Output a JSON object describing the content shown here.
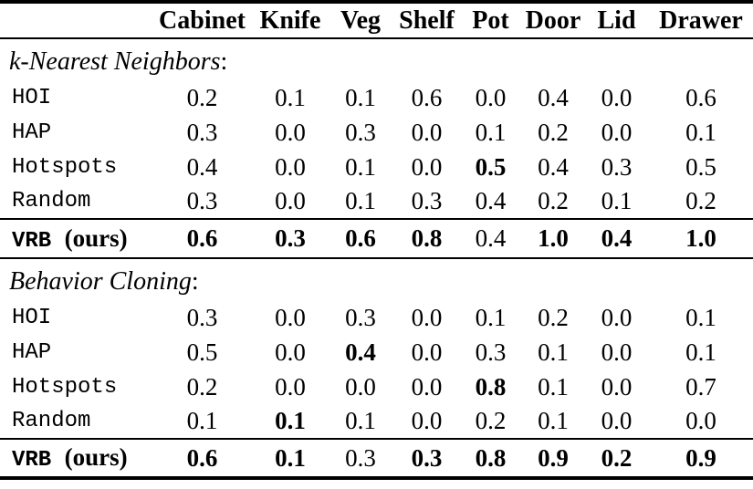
{
  "page": {
    "background": "#ffffff",
    "text_color": "#000000"
  },
  "table": {
    "columns": [
      "Cabinet",
      "Knife",
      "Veg",
      "Shelf",
      "Pot",
      "Door",
      "Lid",
      "Drawer"
    ],
    "sections": [
      {
        "id": "knn",
        "label": "k-Nearest Neighbors",
        "colon": ":",
        "rows": [
          {
            "method": "HOI",
            "values": [
              "0.2",
              "0.1",
              "0.1",
              "0.6",
              "0.0",
              "0.4",
              "0.0",
              "0.6"
            ],
            "bold": [
              false,
              false,
              false,
              false,
              false,
              false,
              false,
              false
            ]
          },
          {
            "method": "HAP",
            "values": [
              "0.3",
              "0.0",
              "0.3",
              "0.0",
              "0.1",
              "0.2",
              "0.0",
              "0.1"
            ],
            "bold": [
              false,
              false,
              false,
              false,
              false,
              false,
              false,
              false
            ]
          },
          {
            "method": "Hotspots",
            "values": [
              "0.4",
              "0.0",
              "0.1",
              "0.0",
              "0.5",
              "0.4",
              "0.3",
              "0.5"
            ],
            "bold": [
              false,
              false,
              false,
              false,
              true,
              false,
              false,
              false
            ]
          },
          {
            "method": "Random",
            "values": [
              "0.3",
              "0.0",
              "0.1",
              "0.3",
              "0.4",
              "0.2",
              "0.1",
              "0.2"
            ],
            "bold": [
              false,
              false,
              false,
              false,
              false,
              false,
              false,
              false
            ]
          }
        ],
        "summary": {
          "method": "VRB",
          "note": "(ours)",
          "values": [
            "0.6",
            "0.3",
            "0.6",
            "0.8",
            "0.4",
            "1.0",
            "0.4",
            "1.0"
          ],
          "bold": [
            true,
            true,
            true,
            true,
            false,
            true,
            true,
            true
          ]
        }
      },
      {
        "id": "bc",
        "label": "Behavior Cloning",
        "colon": ":",
        "rows": [
          {
            "method": "HOI",
            "values": [
              "0.3",
              "0.0",
              "0.3",
              "0.0",
              "0.1",
              "0.2",
              "0.0",
              "0.1"
            ],
            "bold": [
              false,
              false,
              false,
              false,
              false,
              false,
              false,
              false
            ]
          },
          {
            "method": "HAP",
            "values": [
              "0.5",
              "0.0",
              "0.4",
              "0.0",
              "0.3",
              "0.1",
              "0.0",
              "0.1"
            ],
            "bold": [
              false,
              false,
              true,
              false,
              false,
              false,
              false,
              false
            ]
          },
          {
            "method": "Hotspots",
            "values": [
              "0.2",
              "0.0",
              "0.0",
              "0.0",
              "0.8",
              "0.1",
              "0.0",
              "0.7"
            ],
            "bold": [
              false,
              false,
              false,
              false,
              true,
              false,
              false,
              false
            ]
          },
          {
            "method": "Random",
            "values": [
              "0.1",
              "0.1",
              "0.1",
              "0.0",
              "0.2",
              "0.1",
              "0.0",
              "0.0"
            ],
            "bold": [
              false,
              true,
              false,
              false,
              false,
              false,
              false,
              false
            ]
          }
        ],
        "summary": {
          "method": "VRB",
          "note": "(ours)",
          "values": [
            "0.6",
            "0.1",
            "0.3",
            "0.3",
            "0.8",
            "0.9",
            "0.2",
            "0.9"
          ],
          "bold": [
            true,
            true,
            false,
            true,
            true,
            true,
            true,
            true
          ]
        }
      }
    ]
  }
}
